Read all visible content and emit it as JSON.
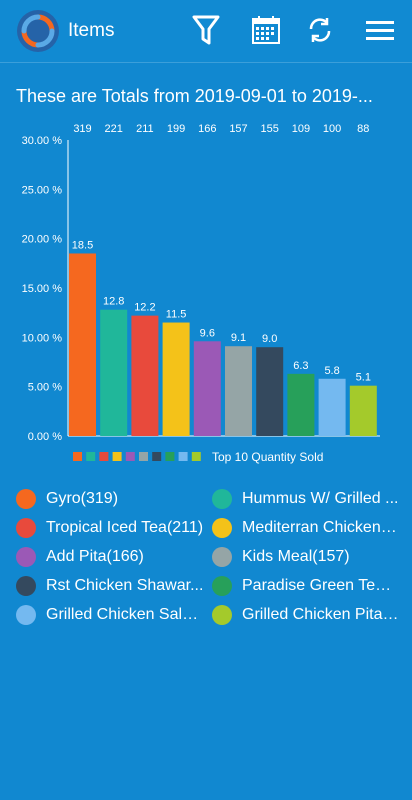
{
  "header": {
    "title": "Items",
    "filter_icon": "filter-icon",
    "calendar_icon": "calendar-icon",
    "refresh_icon": "refresh-icon",
    "menu_icon": "menu-icon"
  },
  "subtitle": "These are Totals from 2019-09-01 to 2019-...",
  "chart_data": {
    "type": "bar",
    "title": "",
    "xlabel": "",
    "ylabel": "",
    "ylim": [
      0,
      30
    ],
    "yticks": [
      "0.00 %",
      "5.00 %",
      "10.00 %",
      "15.00 %",
      "20.00 %",
      "25.00 %",
      "30.00 %"
    ],
    "values": [
      18.5,
      12.8,
      12.2,
      11.5,
      9.6,
      9.1,
      9.0,
      6.3,
      5.8,
      5.1
    ],
    "value_labels": [
      "18.5",
      "12.8",
      "12.2",
      "11.5",
      "9.6",
      "9.1",
      "9.0",
      "6.3",
      "5.8",
      "5.1"
    ],
    "quantities": [
      "319",
      "221",
      "211",
      "199",
      "166",
      "157",
      "155",
      "109",
      "100",
      "88"
    ],
    "colors": [
      "#f5681f",
      "#20b79a",
      "#e84a3c",
      "#f4c219",
      "#9b59b6",
      "#95a5a6",
      "#34495e",
      "#27a05a",
      "#74b9f0",
      "#a4ca2b"
    ],
    "series_name": "Top 10 Quantity Sold",
    "legend_position": "bottom",
    "grid": false
  },
  "legend": {
    "items": [
      {
        "label": "Gyro(319)",
        "color": "#f5681f"
      },
      {
        "label": "Hummus W/ Grilled ...",
        "color": "#20b79a"
      },
      {
        "label": "Tropical Iced Tea(211)",
        "color": "#e84a3c"
      },
      {
        "label": "Mediterran Chicken S...",
        "color": "#f4c219"
      },
      {
        "label": "Add Pita(166)",
        "color": "#9b59b6"
      },
      {
        "label": "Kids Meal(157)",
        "color": "#95a5a6"
      },
      {
        "label": "Rst Chicken Shawar...",
        "color": "#34495e"
      },
      {
        "label": "Paradise Green Tea(...",
        "color": "#27a05a"
      },
      {
        "label": "Grilled Chicken Salad...",
        "color": "#74b9f0"
      },
      {
        "label": "Grilled Chicken Pita(...",
        "color": "#a4ca2b"
      }
    ]
  }
}
